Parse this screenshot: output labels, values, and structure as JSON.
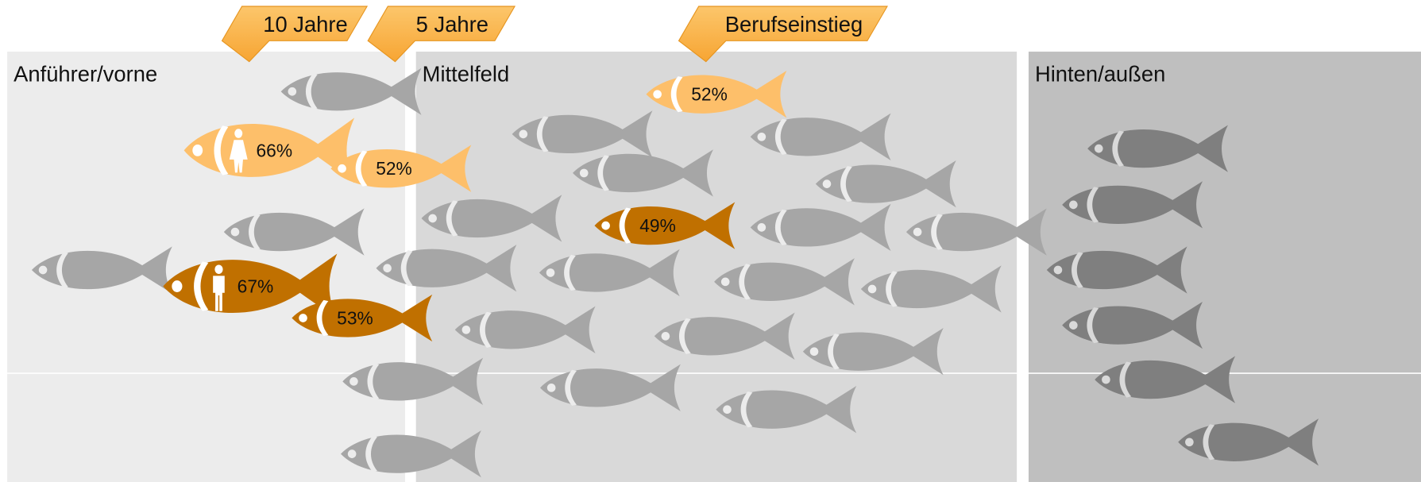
{
  "zones": [
    "Anführer/vorne",
    "Mittelfeld",
    "Hinten/außen"
  ],
  "tags": [
    "10 Jahre",
    "5 Jahre",
    "Berufseinstieg"
  ],
  "fish_labels": [
    "66%",
    "52%",
    "52%",
    "67%",
    "53%",
    "49%"
  ]
}
